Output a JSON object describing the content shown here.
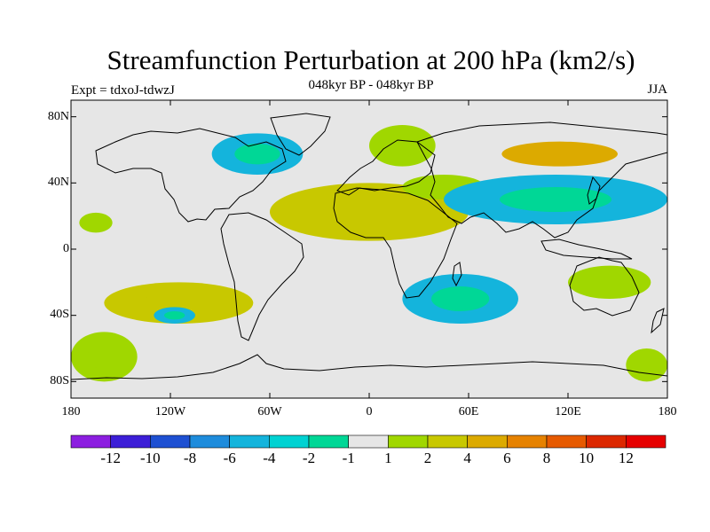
{
  "title": "Streamfunction Perturbation at 200 hPa (km2/s)",
  "subtitle": "048kyr BP - 048kyr BP",
  "left_label": "Expt = tdxoJ-tdwzJ",
  "right_label": "JJA",
  "lat_labels": [
    "80N",
    "40N",
    "0",
    "40S",
    "80S"
  ],
  "lon_labels": [
    "180",
    "120W",
    "60W",
    "0",
    "60E",
    "120E",
    "180"
  ],
  "colorbar": {
    "labels": [
      "-12",
      "-10",
      "-8",
      "-6",
      "-4",
      "-2",
      "-1",
      "1",
      "2",
      "4",
      "6",
      "8",
      "10",
      "12"
    ],
    "colors": [
      "#8c1ee0",
      "#3c1ed7",
      "#1e50d2",
      "#1e8cdc",
      "#14b4dc",
      "#00d2d2",
      "#00d796",
      "#e6e6e6",
      "#a0d700",
      "#c8c800",
      "#dcaa00",
      "#e68200",
      "#e65a00",
      "#dc2800",
      "#e60000"
    ]
  },
  "chart_data": {
    "type": "heatmap",
    "title": "Streamfunction Perturbation at 200 hPa (km2/s)",
    "subtitle": "048kyr BP - 048kyr BP",
    "variable_units": "km2/s",
    "season": "JJA",
    "experiment": "tdxoJ-tdwzJ",
    "projection": "cylindrical equidistant",
    "xlim": [
      -180,
      180
    ],
    "ylim": [
      -90,
      90
    ],
    "x_ticks": [
      "180",
      "120W",
      "60W",
      "0",
      "60E",
      "120E",
      "180"
    ],
    "y_ticks": [
      "80N",
      "40N",
      "0",
      "40S",
      "80S"
    ],
    "contour_levels": [
      -12,
      -10,
      -8,
      -6,
      -4,
      -2,
      -1,
      1,
      2,
      4,
      6,
      8,
      10,
      12
    ],
    "regions": [
      {
        "lon": [
          -95,
          -40
        ],
        "lat": [
          45,
          70
        ],
        "value_range": [
          -4,
          -2
        ]
      },
      {
        "lon": [
          -175,
          -155
        ],
        "lat": [
          10,
          22
        ],
        "value_range": [
          1,
          2
        ]
      },
      {
        "lon": [
          -60,
          60
        ],
        "lat": [
          5,
          40
        ],
        "value_range": [
          2,
          4
        ]
      },
      {
        "lon": [
          0,
          40
        ],
        "lat": [
          50,
          75
        ],
        "value_range": [
          1,
          2
        ]
      },
      {
        "lon": [
          20,
          70
        ],
        "lat": [
          30,
          45
        ],
        "value_range": [
          1,
          2
        ]
      },
      {
        "lon": [
          80,
          150
        ],
        "lat": [
          50,
          65
        ],
        "value_range": [
          4,
          6
        ]
      },
      {
        "lon": [
          45,
          180
        ],
        "lat": [
          15,
          45
        ],
        "value_range": [
          -4,
          -2
        ]
      },
      {
        "lon": [
          20,
          90
        ],
        "lat": [
          -45,
          -15
        ],
        "value_range": [
          -4,
          -2
        ]
      },
      {
        "lon": [
          -160,
          -70
        ],
        "lat": [
          -45,
          -20
        ],
        "value_range": [
          2,
          4
        ]
      },
      {
        "lon": [
          -130,
          -105
        ],
        "lat": [
          -45,
          -35
        ],
        "value_range": [
          -4,
          -2
        ]
      },
      {
        "lon": [
          -180,
          -140
        ],
        "lat": [
          -80,
          -50
        ],
        "value_range": [
          1,
          2
        ]
      },
      {
        "lon": [
          155,
          180
        ],
        "lat": [
          -80,
          -60
        ],
        "value_range": [
          1,
          2
        ]
      },
      {
        "lon": [
          120,
          170
        ],
        "lat": [
          -30,
          -10
        ],
        "value_range": [
          1,
          2
        ]
      }
    ]
  }
}
